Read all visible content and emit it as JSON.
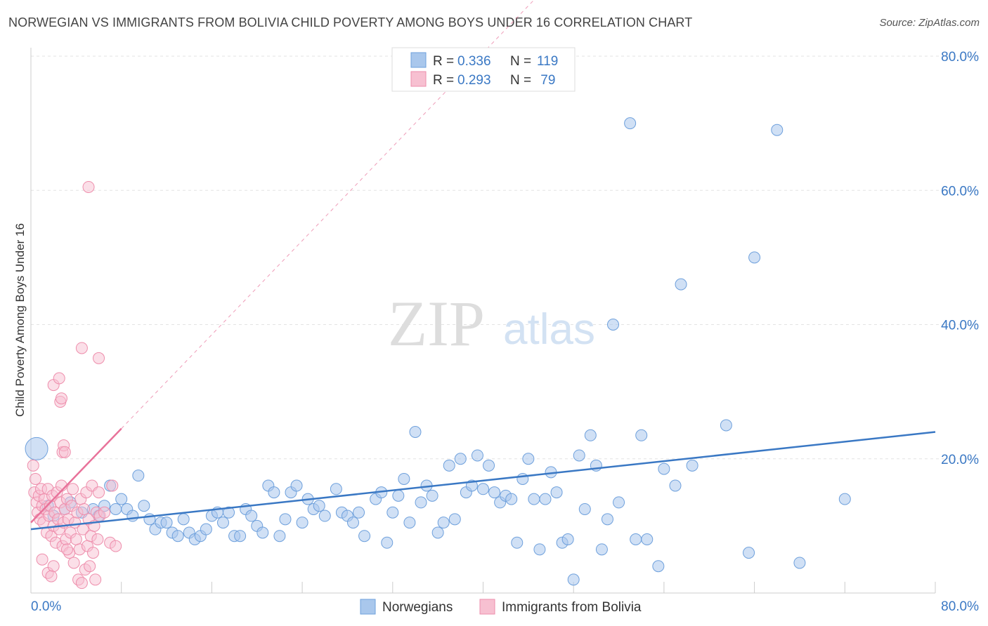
{
  "header": {
    "title": "NORWEGIAN VS IMMIGRANTS FROM BOLIVIA CHILD POVERTY AMONG BOYS UNDER 16 CORRELATION CHART",
    "source": "Source: ZipAtlas.com"
  },
  "watermark": {
    "zip": "ZIP",
    "atlas": "atlas"
  },
  "colors": {
    "blue": "#6ea0dc",
    "blue_fill": "#a9c7ec",
    "blue_line": "#3a78c4",
    "pink": "#ee8eac",
    "pink_fill": "#f7c0d1",
    "pink_line": "#e8729a",
    "axis_text": "#3a78c4",
    "grid": "#e3e3e3"
  },
  "legend_top": {
    "rows": [
      {
        "r_label": "R = ",
        "r_value": "0.336",
        "n_label": "N = ",
        "n_value": "119"
      },
      {
        "r_label": "R = ",
        "r_value": "0.293",
        "n_label": "N = ",
        "n_value": " 79"
      }
    ]
  },
  "legend_bottom": {
    "items": [
      {
        "label": "Norwegians"
      },
      {
        "label": "Immigrants from Bolivia"
      }
    ]
  },
  "chart_data": {
    "type": "scatter",
    "title": "NORWEGIAN VS IMMIGRANTS FROM BOLIVIA CHILD POVERTY AMONG BOYS UNDER 16 CORRELATION CHART",
    "xlabel": "",
    "ylabel": "Child Poverty Among Boys Under 16",
    "xlim": [
      0,
      80
    ],
    "ylim": [
      0,
      80
    ],
    "x_tick_labels": [
      "0.0%",
      "80.0%"
    ],
    "y_tick_labels": [
      "20.0%",
      "40.0%",
      "60.0%",
      "80.0%"
    ],
    "y_ticks": [
      20,
      40,
      60,
      80
    ],
    "grid": true,
    "legend_position": "top-center",
    "series": [
      {
        "name": "Norwegians",
        "r": 0.336,
        "n": 119,
        "trend": {
          "x": [
            0,
            80
          ],
          "y": [
            9.5,
            24.0
          ]
        },
        "points": [
          [
            0.5,
            21.5
          ],
          [
            1.5,
            13.0
          ],
          [
            2.0,
            11.5
          ],
          [
            3.0,
            12.5
          ],
          [
            3.5,
            13.5
          ],
          [
            4.5,
            12.0
          ],
          [
            5.5,
            12.5
          ],
          [
            6.0,
            11.5
          ],
          [
            6.5,
            13.0
          ],
          [
            7.0,
            16.0
          ],
          [
            7.5,
            12.5
          ],
          [
            8.0,
            14.0
          ],
          [
            8.5,
            12.5
          ],
          [
            9.0,
            11.5
          ],
          [
            9.5,
            17.5
          ],
          [
            10.0,
            13.0
          ],
          [
            10.5,
            11.0
          ],
          [
            11.0,
            9.5
          ],
          [
            11.5,
            10.5
          ],
          [
            12.0,
            10.5
          ],
          [
            12.5,
            9.0
          ],
          [
            13.0,
            8.5
          ],
          [
            13.5,
            11.0
          ],
          [
            14.0,
            9.0
          ],
          [
            14.5,
            8.0
          ],
          [
            15.0,
            8.5
          ],
          [
            15.5,
            9.5
          ],
          [
            16.0,
            11.5
          ],
          [
            16.5,
            12.0
          ],
          [
            17.0,
            10.5
          ],
          [
            17.5,
            12.0
          ],
          [
            18.0,
            8.5
          ],
          [
            18.5,
            8.5
          ],
          [
            19.0,
            12.5
          ],
          [
            19.5,
            11.5
          ],
          [
            20.0,
            10.0
          ],
          [
            20.5,
            9.0
          ],
          [
            21.0,
            16.0
          ],
          [
            21.5,
            15.0
          ],
          [
            22.0,
            8.5
          ],
          [
            22.5,
            11.0
          ],
          [
            23.0,
            15.0
          ],
          [
            23.5,
            16.0
          ],
          [
            24.0,
            10.5
          ],
          [
            24.5,
            14.0
          ],
          [
            25.0,
            12.5
          ],
          [
            25.5,
            13.0
          ],
          [
            26.0,
            11.5
          ],
          [
            27.0,
            15.5
          ],
          [
            27.5,
            12.0
          ],
          [
            28.0,
            11.5
          ],
          [
            28.5,
            10.5
          ],
          [
            29.0,
            12.0
          ],
          [
            29.5,
            8.5
          ],
          [
            30.5,
            14.0
          ],
          [
            31.0,
            15.0
          ],
          [
            31.5,
            7.5
          ],
          [
            32.0,
            12.0
          ],
          [
            32.5,
            14.5
          ],
          [
            33.0,
            17.0
          ],
          [
            33.5,
            10.5
          ],
          [
            34.0,
            24.0
          ],
          [
            34.5,
            13.5
          ],
          [
            35.0,
            16.0
          ],
          [
            35.5,
            14.5
          ],
          [
            36.0,
            9.0
          ],
          [
            36.5,
            10.5
          ],
          [
            37.0,
            19.0
          ],
          [
            37.5,
            11.0
          ],
          [
            38.0,
            20.0
          ],
          [
            38.5,
            15.0
          ],
          [
            39.0,
            16.0
          ],
          [
            39.5,
            20.5
          ],
          [
            40.0,
            15.5
          ],
          [
            40.5,
            19.0
          ],
          [
            41.0,
            15.0
          ],
          [
            41.5,
            13.5
          ],
          [
            42.0,
            14.5
          ],
          [
            42.5,
            14.0
          ],
          [
            43.0,
            7.5
          ],
          [
            43.5,
            17.0
          ],
          [
            44.0,
            20.0
          ],
          [
            44.5,
            14.0
          ],
          [
            45.0,
            6.5
          ],
          [
            45.5,
            14.0
          ],
          [
            46.0,
            18.0
          ],
          [
            46.5,
            15.0
          ],
          [
            47.0,
            7.5
          ],
          [
            47.5,
            8.0
          ],
          [
            48.0,
            2.0
          ],
          [
            48.5,
            20.5
          ],
          [
            49.0,
            12.5
          ],
          [
            49.5,
            23.5
          ],
          [
            50.0,
            19.0
          ],
          [
            50.5,
            6.5
          ],
          [
            51.0,
            11.0
          ],
          [
            51.5,
            40.0
          ],
          [
            52.0,
            13.5
          ],
          [
            53.0,
            70.0
          ],
          [
            53.5,
            8.0
          ],
          [
            54.0,
            23.5
          ],
          [
            54.5,
            8.0
          ],
          [
            55.5,
            4.0
          ],
          [
            56.0,
            18.5
          ],
          [
            57.0,
            16.0
          ],
          [
            57.5,
            46.0
          ],
          [
            58.5,
            19.0
          ],
          [
            61.5,
            25.0
          ],
          [
            63.5,
            6.0
          ],
          [
            64.0,
            50.0
          ],
          [
            66.0,
            69.0
          ],
          [
            68.0,
            4.5
          ],
          [
            72.0,
            14.0
          ]
        ]
      },
      {
        "name": "Immigrants from Bolivia",
        "r": 0.293,
        "n": 79,
        "trend": {
          "x": [
            0,
            8
          ],
          "y": [
            10.5,
            24.5
          ]
        },
        "points": [
          [
            0.2,
            19.0
          ],
          [
            0.3,
            15.0
          ],
          [
            0.4,
            17.0
          ],
          [
            0.5,
            13.5
          ],
          [
            0.6,
            12.0
          ],
          [
            0.7,
            14.5
          ],
          [
            0.8,
            11.0
          ],
          [
            0.9,
            15.5
          ],
          [
            1.0,
            13.0
          ],
          [
            1.1,
            10.5
          ],
          [
            1.2,
            14.0
          ],
          [
            1.3,
            12.5
          ],
          [
            1.4,
            9.0
          ],
          [
            1.5,
            15.5
          ],
          [
            1.6,
            11.5
          ],
          [
            1.7,
            13.0
          ],
          [
            1.8,
            8.5
          ],
          [
            1.9,
            14.5
          ],
          [
            2.0,
            10.0
          ],
          [
            2.1,
            12.0
          ],
          [
            2.2,
            7.5
          ],
          [
            2.3,
            15.0
          ],
          [
            2.4,
            11.0
          ],
          [
            2.5,
            9.5
          ],
          [
            2.6,
            13.5
          ],
          [
            2.7,
            16.0
          ],
          [
            2.8,
            7.0
          ],
          [
            2.9,
            10.5
          ],
          [
            3.0,
            12.5
          ],
          [
            3.1,
            8.0
          ],
          [
            3.2,
            14.0
          ],
          [
            3.3,
            11.0
          ],
          [
            3.4,
            6.0
          ],
          [
            3.5,
            9.0
          ],
          [
            3.6,
            13.0
          ],
          [
            3.7,
            15.5
          ],
          [
            3.8,
            4.5
          ],
          [
            3.9,
            10.5
          ],
          [
            4.0,
            8.0
          ],
          [
            4.1,
            12.0
          ],
          [
            4.2,
            2.0
          ],
          [
            4.3,
            6.5
          ],
          [
            4.4,
            14.0
          ],
          [
            4.5,
            1.5
          ],
          [
            4.6,
            9.5
          ],
          [
            4.7,
            12.5
          ],
          [
            4.8,
            3.5
          ],
          [
            4.9,
            15.0
          ],
          [
            5.0,
            7.0
          ],
          [
            5.1,
            11.0
          ],
          [
            5.2,
            4.0
          ],
          [
            5.3,
            8.5
          ],
          [
            5.4,
            16.0
          ],
          [
            5.5,
            6.0
          ],
          [
            5.6,
            10.0
          ],
          [
            5.7,
            2.0
          ],
          [
            5.8,
            12.0
          ],
          [
            5.9,
            8.0
          ],
          [
            6.0,
            15.0
          ],
          [
            6.1,
            11.5
          ],
          [
            2.0,
            31.0
          ],
          [
            2.5,
            32.0
          ],
          [
            2.6,
            28.5
          ],
          [
            2.7,
            29.0
          ],
          [
            2.8,
            21.0
          ],
          [
            2.9,
            22.0
          ],
          [
            3.0,
            21.0
          ],
          [
            4.5,
            36.5
          ],
          [
            6.0,
            35.0
          ],
          [
            5.1,
            60.5
          ],
          [
            7.0,
            7.5
          ],
          [
            7.5,
            7.0
          ],
          [
            7.2,
            16.0
          ],
          [
            6.5,
            12.0
          ],
          [
            1.0,
            5.0
          ],
          [
            1.5,
            3.0
          ],
          [
            2.0,
            4.0
          ],
          [
            1.8,
            2.5
          ],
          [
            3.2,
            6.5
          ]
        ]
      }
    ]
  }
}
